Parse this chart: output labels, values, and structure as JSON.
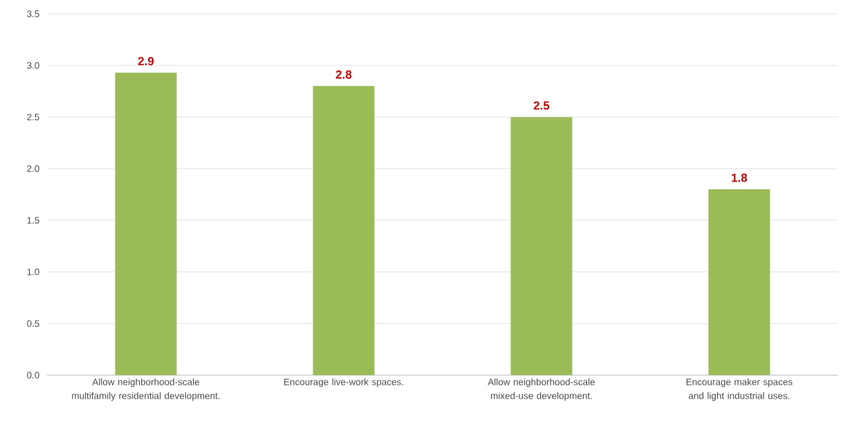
{
  "chart_data": {
    "type": "bar",
    "categories": [
      "Allow neighborhood-scale multifamily residential development.",
      "Encourage live-work spaces.",
      "Allow neighborhood-scale mixed-use development.",
      "Encourage maker spaces and light industrial uses."
    ],
    "values": [
      2.93,
      2.8,
      2.5,
      1.8
    ],
    "value_labels": [
      "2.9",
      "2.8",
      "2.5",
      "1.8"
    ],
    "color": "#9bbb59",
    "ylim": [
      0,
      3.5
    ],
    "yticks": [
      {
        "value": 0,
        "label": "0.0"
      },
      {
        "value": 0.5,
        "label": "0.5"
      },
      {
        "value": 1,
        "label": "1.0"
      },
      {
        "value": 1.5,
        "label": "1.5"
      },
      {
        "value": 2,
        "label": "2.0"
      },
      {
        "value": 2.5,
        "label": "2.5"
      },
      {
        "value": 3,
        "label": "3.0"
      },
      {
        "value": 3.5,
        "label": "3.5"
      }
    ],
    "grid": "y"
  }
}
